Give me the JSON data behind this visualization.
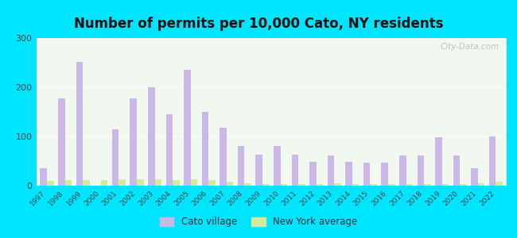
{
  "title": "Number of permits per 10,000 Cato, NY residents",
  "years": [
    1997,
    1998,
    1999,
    2000,
    2001,
    2002,
    2003,
    2004,
    2005,
    2006,
    2007,
    2008,
    2009,
    2010,
    2011,
    2012,
    2013,
    2014,
    2015,
    2016,
    2017,
    2018,
    2019,
    2020,
    2021,
    2022
  ],
  "cato_values": [
    35,
    178,
    252,
    0,
    115,
    178,
    200,
    145,
    235,
    150,
    118,
    80,
    63,
    80,
    63,
    48,
    62,
    48,
    47,
    47,
    62,
    62,
    98,
    62,
    35,
    100
  ],
  "ny_values": [
    10,
    12,
    12,
    12,
    13,
    13,
    13,
    12,
    13,
    12,
    8,
    5,
    4,
    4,
    4,
    3,
    5,
    4,
    3,
    3,
    4,
    4,
    4,
    4,
    5,
    8
  ],
  "cato_color": "#c9b8e8",
  "ny_color": "#d4e8a0",
  "ylim": [
    0,
    300
  ],
  "yticks": [
    0,
    100,
    200,
    300
  ],
  "bg_outer": "#00e5ff",
  "bg_plot": "#f0f8f0",
  "title_fontsize": 12,
  "watermark": "City-Data.com",
  "bar_width": 0.38,
  "legend_cato": "Cato village",
  "legend_ny": "New York average"
}
